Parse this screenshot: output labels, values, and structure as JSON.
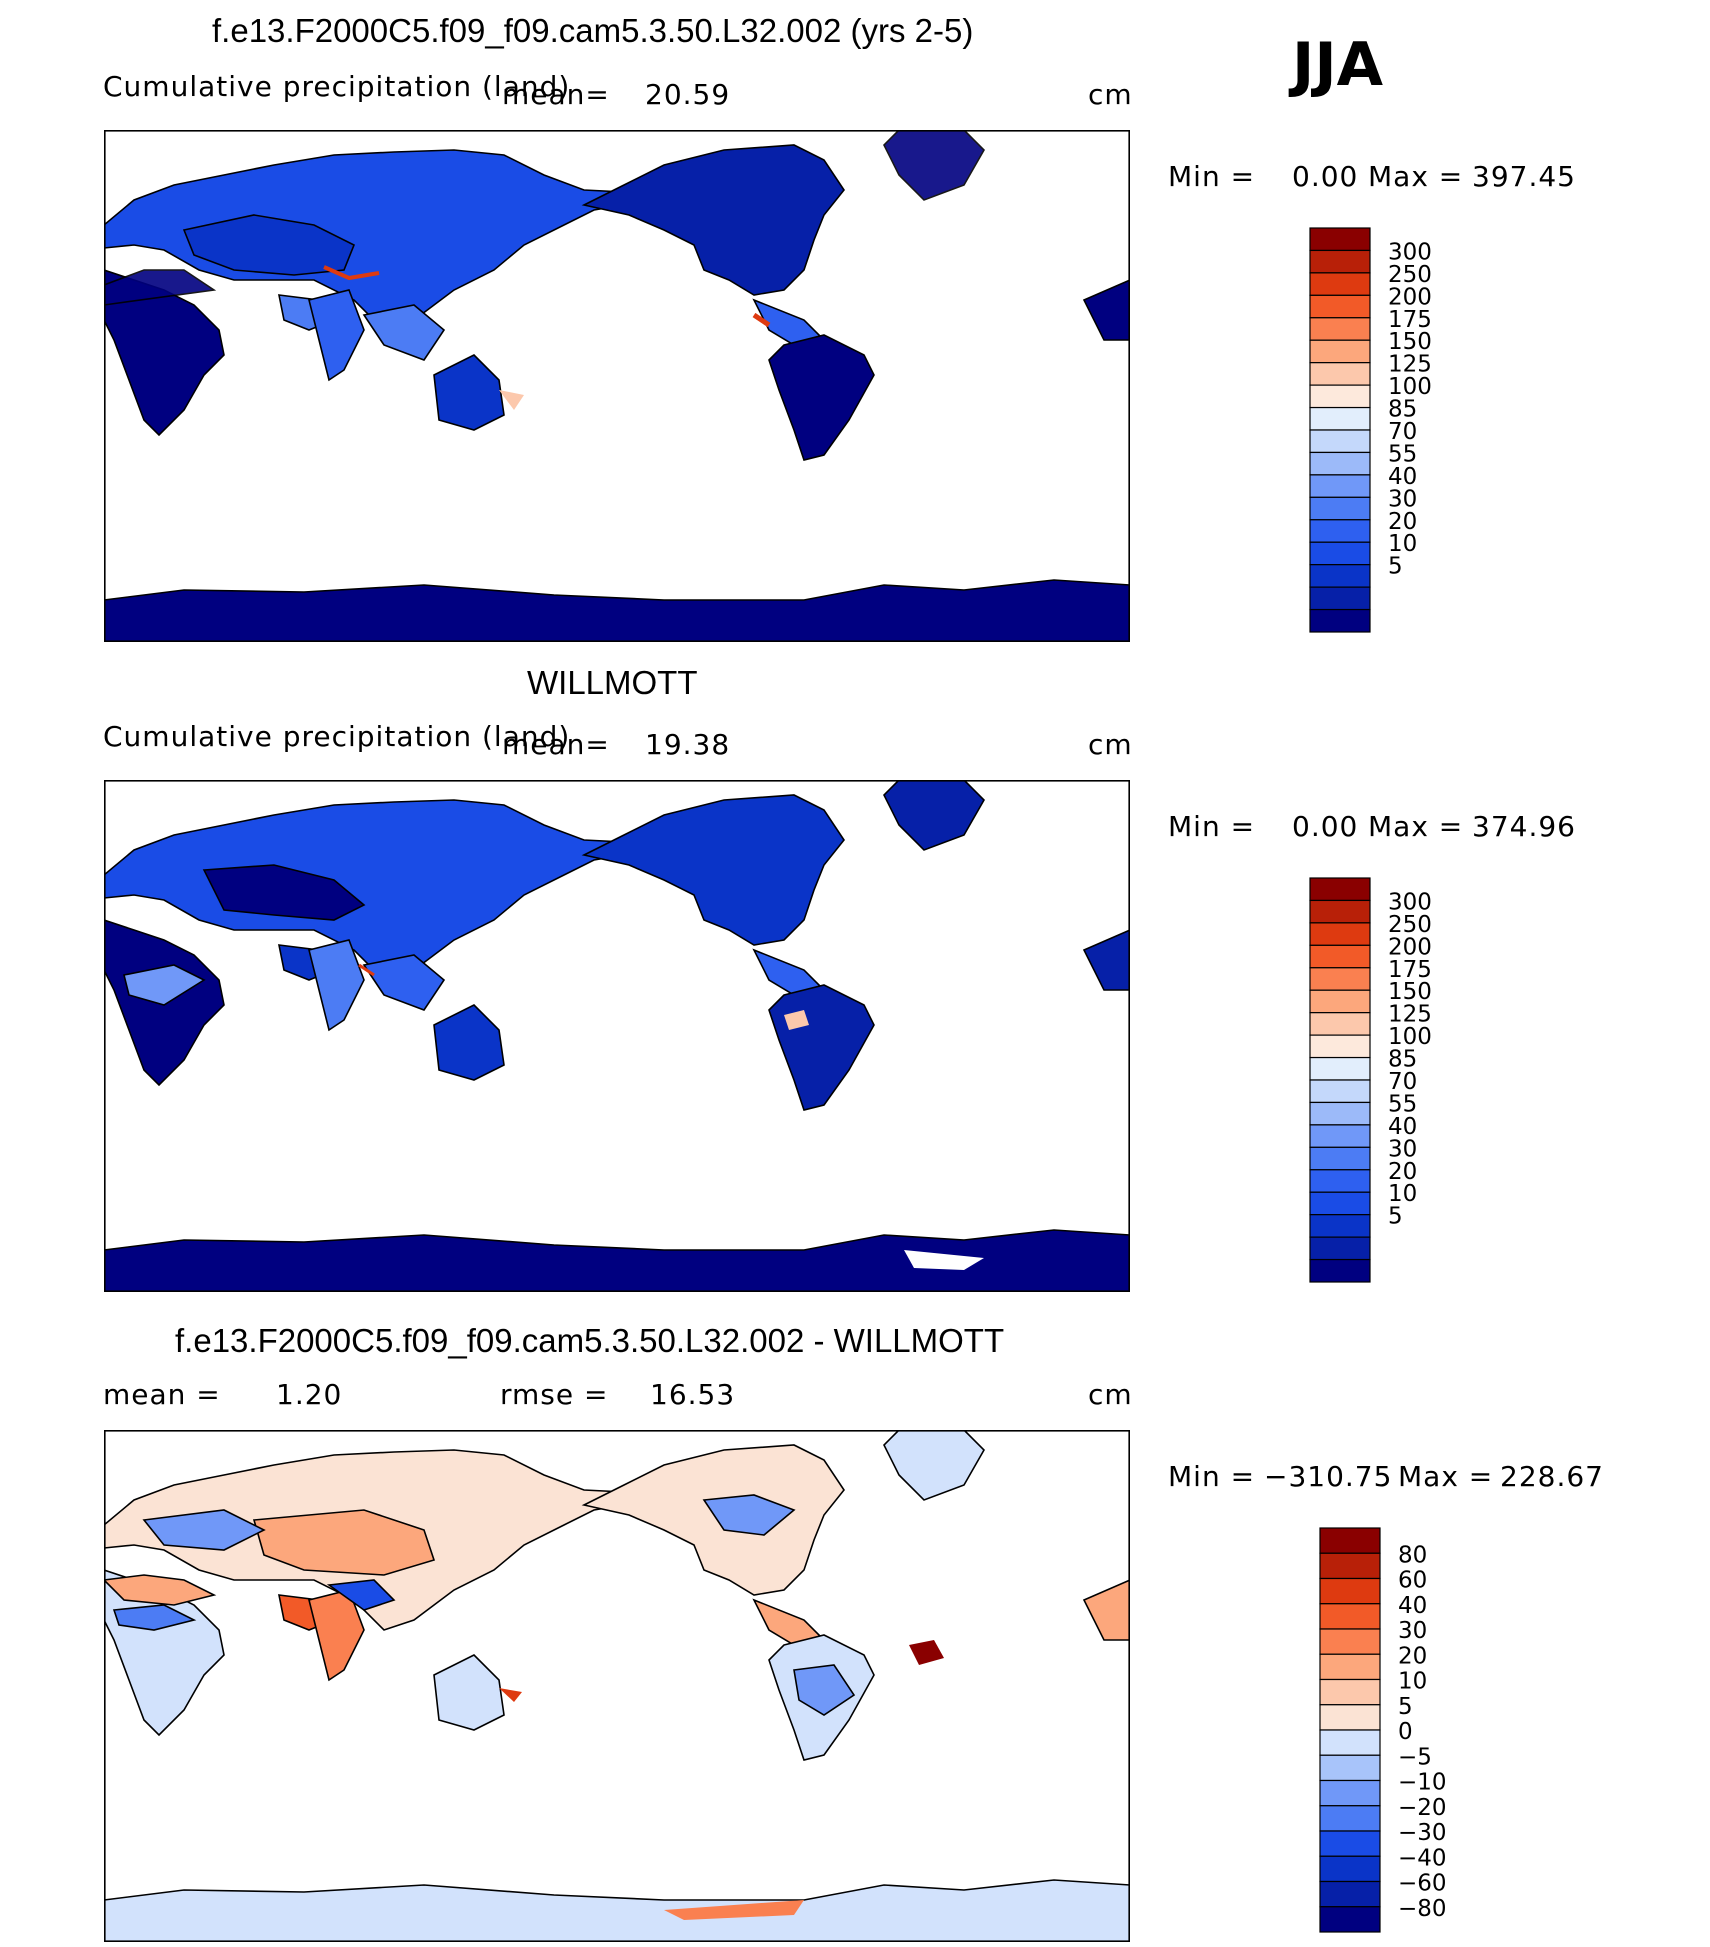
{
  "season": "JJA",
  "colors": {
    "model_levels": [
      "#000080",
      "#0620a8",
      "#0a34c8",
      "#1a4ce6",
      "#2e60f0",
      "#4c7cf4",
      "#7098f8",
      "#9cbaf9",
      "#c4d8fb",
      "#e2eefc",
      "#fde9dc",
      "#fcc8ac",
      "#fca77c",
      "#fa8050",
      "#f25a28",
      "#de3a10",
      "#b82008",
      "#8a0000"
    ],
    "diff_levels": [
      "#000080",
      "#0620a8",
      "#0a34c8",
      "#1a4ce6",
      "#4c7cf4",
      "#7098f8",
      "#a8c4fa",
      "#d2e2fc",
      "#fbe3d4",
      "#fcc8ac",
      "#fca77c",
      "#fa8050",
      "#f25a28",
      "#de3a10",
      "#b82008",
      "#8a0000"
    ]
  },
  "panels": [
    {
      "id": "model",
      "title": "f.e13.F2000C5.f09_f09.cam5.3.50.L32.002 (yrs 2-5)",
      "variable": "Cumulative precipitation (land)",
      "mean_label": "mean=",
      "mean_value": "20.59",
      "units": "cm",
      "min_label": "Min =",
      "min_value": "0.00",
      "max_label": "Max =",
      "max_value": "397.45"
    },
    {
      "id": "obs",
      "title": "WILLMOTT",
      "variable": "Cumulative precipitation (land)",
      "mean_label": "mean=",
      "mean_value": "19.38",
      "units": "cm",
      "min_label": "Min =",
      "min_value": "0.00",
      "max_label": "Max =",
      "max_value": "374.96"
    },
    {
      "id": "diff",
      "title": "f.e13.F2000C5.f09_f09.cam5.3.50.L32.002 - WILLMOTT",
      "mean_label": "mean =",
      "mean_value": "1.20",
      "rmse_label": "rmse =",
      "rmse_value": "16.53",
      "units": "cm",
      "min_label": "Min =",
      "min_value": "−310.75",
      "max_label": "Max =",
      "max_value": "228.67"
    }
  ],
  "chart_data": [
    {
      "type": "heatmap",
      "title": "f.e13.F2000C5.f09_f09.cam5.3.50.L32.002 (yrs 2-5)",
      "subtitle": "Cumulative precipitation (land)",
      "units": "cm",
      "mean": 20.59,
      "min": 0.0,
      "max": 397.45,
      "colorbar_levels": [
        "300",
        "250",
        "200",
        "175",
        "150",
        "125",
        "100",
        "85",
        "70",
        "55",
        "40",
        "30",
        "20",
        "10",
        "5"
      ]
    },
    {
      "type": "heatmap",
      "title": "WILLMOTT",
      "subtitle": "Cumulative precipitation (land)",
      "units": "cm",
      "mean": 19.38,
      "min": 0.0,
      "max": 374.96,
      "colorbar_levels": [
        "300",
        "250",
        "200",
        "175",
        "150",
        "125",
        "100",
        "85",
        "70",
        "55",
        "40",
        "30",
        "20",
        "10",
        "5"
      ]
    },
    {
      "type": "heatmap",
      "title": "f.e13.F2000C5.f09_f09.cam5.3.50.L32.002 - WILLMOTT",
      "units": "cm",
      "mean": 1.2,
      "rmse": 16.53,
      "min": -310.75,
      "max": 228.67,
      "colorbar_levels": [
        "80",
        "60",
        "40",
        "30",
        "20",
        "10",
        "5",
        "0",
        "−5",
        "−10",
        "−20",
        "−30",
        "−40",
        "−60",
        "−80"
      ]
    }
  ]
}
